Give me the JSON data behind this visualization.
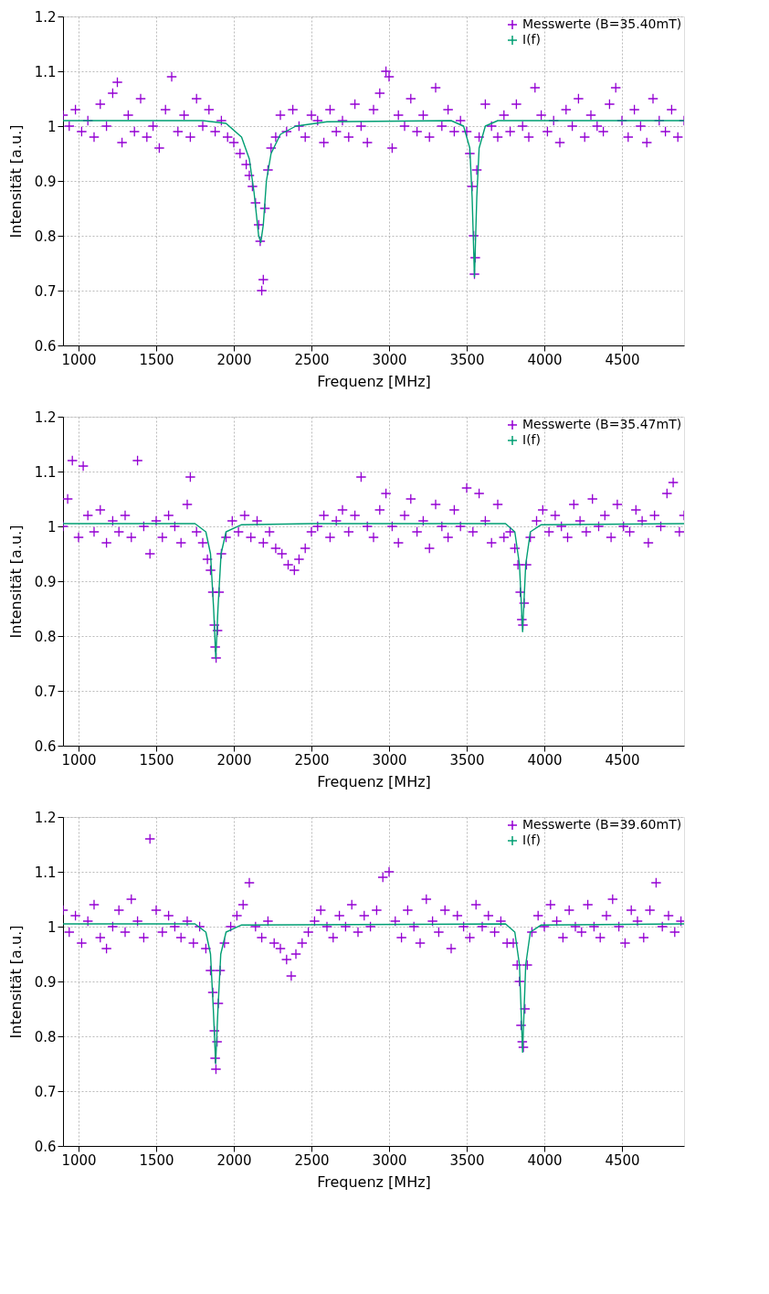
{
  "chart_data": [
    {
      "type": "scatter",
      "xlabel": "Frequenz [MHz]",
      "ylabel": "Intensität [a.u.]",
      "xlim": [
        900,
        4900
      ],
      "ylim": [
        0.6,
        1.2
      ],
      "xticks": [
        1000,
        1500,
        2000,
        2500,
        3000,
        3500,
        4000,
        4500
      ],
      "yticks": [
        0.6,
        0.7,
        0.8,
        0.9,
        1,
        1.1,
        1.2
      ],
      "grid": true,
      "legend": "top right",
      "series": [
        {
          "name": "Messwerte (B=35.40mT)",
          "marker": "cross",
          "color": "#9400d3",
          "x": [
            900,
            940,
            980,
            1020,
            1060,
            1100,
            1140,
            1180,
            1220,
            1250,
            1280,
            1320,
            1360,
            1400,
            1440,
            1480,
            1520,
            1560,
            1600,
            1640,
            1680,
            1720,
            1760,
            1800,
            1840,
            1880,
            1920,
            1960,
            2000,
            2040,
            2080,
            2100,
            2120,
            2140,
            2160,
            2170,
            2180,
            2190,
            2200,
            2220,
            2240,
            2270,
            2300,
            2340,
            2380,
            2420,
            2460,
            2500,
            2540,
            2580,
            2620,
            2660,
            2700,
            2740,
            2780,
            2820,
            2860,
            2900,
            2940,
            2980,
            3000,
            3020,
            3060,
            3100,
            3140,
            3180,
            3220,
            3260,
            3300,
            3340,
            3380,
            3420,
            3460,
            3500,
            3520,
            3535,
            3545,
            3550,
            3555,
            3565,
            3580,
            3620,
            3660,
            3700,
            3740,
            3780,
            3820,
            3860,
            3900,
            3940,
            3980,
            4020,
            4060,
            4100,
            4140,
            4180,
            4220,
            4260,
            4300,
            4340,
            4380,
            4420,
            4460,
            4500,
            4540,
            4580,
            4620,
            4660,
            4700,
            4740,
            4780,
            4820,
            4860,
            4900
          ],
          "values": [
            1.02,
            1.0,
            1.03,
            0.99,
            1.01,
            0.98,
            1.04,
            1.0,
            1.06,
            1.08,
            0.97,
            1.02,
            0.99,
            1.05,
            0.98,
            1.0,
            0.96,
            1.03,
            1.09,
            0.99,
            1.02,
            0.98,
            1.05,
            1.0,
            1.03,
            0.99,
            1.01,
            0.98,
            0.97,
            0.95,
            0.93,
            0.91,
            0.89,
            0.86,
            0.82,
            0.79,
            0.7,
            0.72,
            0.85,
            0.92,
            0.96,
            0.98,
            1.02,
            0.99,
            1.03,
            1.0,
            0.98,
            1.02,
            1.01,
            0.97,
            1.03,
            0.99,
            1.01,
            0.98,
            1.04,
            1.0,
            0.97,
            1.03,
            1.06,
            1.1,
            1.09,
            0.96,
            1.02,
            1.0,
            1.05,
            0.99,
            1.02,
            0.98,
            1.07,
            1.0,
            1.03,
            0.99,
            1.01,
            0.99,
            0.95,
            0.89,
            0.8,
            0.73,
            0.76,
            0.92,
            0.98,
            1.04,
            1.0,
            0.98,
            1.02,
            0.99,
            1.04,
            1.0,
            0.98,
            1.07,
            1.02,
            0.99,
            1.01,
            0.97,
            1.03,
            1.0,
            1.05,
            0.98,
            1.02,
            1.0,
            0.99,
            1.04,
            1.07,
            1.01,
            0.98,
            1.03,
            1.0,
            0.97,
            1.05,
            1.01,
            0.99,
            1.03,
            0.98,
            1.01
          ]
        },
        {
          "name": "I(f)",
          "type": "line",
          "color": "#009e73",
          "x": [
            900,
            1800,
            1950,
            2050,
            2100,
            2130,
            2160,
            2174,
            2190,
            2210,
            2240,
            2300,
            2400,
            2600,
            3400,
            3480,
            3520,
            3535,
            3550,
            3565,
            3580,
            3620,
            3700,
            4900
          ],
          "values": [
            1.01,
            1.01,
            1.005,
            0.98,
            0.94,
            0.88,
            0.8,
            0.788,
            0.82,
            0.9,
            0.95,
            0.985,
            1.0,
            1.008,
            1.01,
            1.0,
            0.96,
            0.87,
            0.725,
            0.87,
            0.96,
            1.0,
            1.01,
            1.01
          ]
        }
      ]
    },
    {
      "type": "scatter",
      "xlabel": "Frequenz [MHz]",
      "ylabel": "Intensität [a.u.]",
      "xlim": [
        900,
        4900
      ],
      "ylim": [
        0.6,
        1.2
      ],
      "xticks": [
        1000,
        1500,
        2000,
        2500,
        3000,
        3500,
        4000,
        4500
      ],
      "yticks": [
        0.6,
        0.7,
        0.8,
        0.9,
        1,
        1.1,
        1.2
      ],
      "grid": true,
      "legend": "top right",
      "series": [
        {
          "name": "Messwerte (B=35.47mT)",
          "marker": "cross",
          "color": "#9400d3",
          "x": [
            900,
            930,
            960,
            1000,
            1030,
            1060,
            1100,
            1140,
            1180,
            1220,
            1260,
            1300,
            1340,
            1380,
            1420,
            1460,
            1500,
            1540,
            1580,
            1620,
            1660,
            1700,
            1720,
            1760,
            1800,
            1830,
            1850,
            1865,
            1875,
            1880,
            1886,
            1895,
            1905,
            1920,
            1950,
            1990,
            2030,
            2070,
            2110,
            2150,
            2190,
            2230,
            2270,
            2310,
            2350,
            2390,
            2420,
            2460,
            2500,
            2540,
            2580,
            2620,
            2660,
            2700,
            2740,
            2780,
            2820,
            2860,
            2900,
            2940,
            2980,
            3020,
            3060,
            3100,
            3140,
            3180,
            3220,
            3260,
            3300,
            3340,
            3380,
            3420,
            3460,
            3500,
            3540,
            3580,
            3620,
            3660,
            3700,
            3740,
            3780,
            3810,
            3830,
            3845,
            3855,
            3862,
            3870,
            3885,
            3910,
            3950,
            3990,
            4030,
            4070,
            4110,
            4150,
            4190,
            4230,
            4270,
            4310,
            4350,
            4390,
            4430,
            4470,
            4510,
            4550,
            4590,
            4630,
            4670,
            4710,
            4750,
            4790,
            4830,
            4870,
            4900
          ],
          "values": [
            1.0,
            1.05,
            1.12,
            0.98,
            1.11,
            1.02,
            0.99,
            1.03,
            0.97,
            1.01,
            0.99,
            1.02,
            0.98,
            1.12,
            1.0,
            0.95,
            1.01,
            0.98,
            1.02,
            1.0,
            0.97,
            1.04,
            1.09,
            0.99,
            0.97,
            0.94,
            0.92,
            0.88,
            0.82,
            0.78,
            0.76,
            0.81,
            0.88,
            0.95,
            0.98,
            1.01,
            0.99,
            1.02,
            0.98,
            1.01,
            0.97,
            0.99,
            0.96,
            0.95,
            0.93,
            0.92,
            0.94,
            0.96,
            0.99,
            1.0,
            1.02,
            0.98,
            1.01,
            1.03,
            0.99,
            1.02,
            1.09,
            1.0,
            0.98,
            1.03,
            1.06,
            1.0,
            0.97,
            1.02,
            1.05,
            0.99,
            1.01,
            0.96,
            1.04,
            1.0,
            0.98,
            1.03,
            1.0,
            1.07,
            0.99,
            1.06,
            1.01,
            0.97,
            1.04,
            0.98,
            0.99,
            0.96,
            0.93,
            0.88,
            0.83,
            0.82,
            0.86,
            0.93,
            0.98,
            1.01,
            1.03,
            0.99,
            1.02,
            1.0,
            0.98,
            1.04,
            1.01,
            0.99,
            1.05,
            1.0,
            1.02,
            0.98,
            1.04,
            1.0,
            0.99,
            1.03,
            1.01,
            0.97,
            1.02,
            1.0,
            1.06,
            1.08,
            0.99,
            1.02
          ]
        },
        {
          "name": "I(f)",
          "type": "line",
          "color": "#009e73",
          "x": [
            900,
            1750,
            1820,
            1850,
            1870,
            1884,
            1898,
            1918,
            1950,
            2050,
            2500,
            3750,
            3810,
            3840,
            3860,
            3880,
            3910,
            3980,
            4900
          ],
          "values": [
            1.005,
            1.005,
            0.99,
            0.95,
            0.85,
            0.759,
            0.85,
            0.95,
            0.99,
            1.003,
            1.005,
            1.005,
            0.99,
            0.93,
            0.808,
            0.93,
            0.99,
            1.003,
            1.005
          ]
        }
      ]
    },
    {
      "type": "scatter",
      "xlabel": "Frequenz [MHz]",
      "ylabel": "Intensität [a.u.]",
      "xlim": [
        900,
        4900
      ],
      "ylim": [
        0.6,
        1.2
      ],
      "xticks": [
        1000,
        1500,
        2000,
        2500,
        3000,
        3500,
        4000,
        4500
      ],
      "yticks": [
        0.6,
        0.7,
        0.8,
        0.9,
        1,
        1.1,
        1.2
      ],
      "grid": true,
      "legend": "top right",
      "series": [
        {
          "name": "Messwerte (B=39.60mT)",
          "marker": "cross",
          "color": "#9400d3",
          "x": [
            900,
            940,
            980,
            1020,
            1060,
            1100,
            1140,
            1180,
            1220,
            1260,
            1300,
            1340,
            1380,
            1420,
            1460,
            1500,
            1540,
            1580,
            1620,
            1660,
            1700,
            1740,
            1780,
            1820,
            1850,
            1865,
            1875,
            1880,
            1885,
            1892,
            1900,
            1912,
            1940,
            1980,
            2020,
            2060,
            2100,
            2140,
            2180,
            2220,
            2260,
            2300,
            2340,
            2370,
            2400,
            2440,
            2480,
            2520,
            2560,
            2600,
            2640,
            2680,
            2720,
            2760,
            2800,
            2840,
            2880,
            2920,
            2960,
            3000,
            3040,
            3080,
            3120,
            3160,
            3200,
            3240,
            3280,
            3320,
            3360,
            3400,
            3440,
            3480,
            3520,
            3560,
            3600,
            3640,
            3680,
            3720,
            3760,
            3800,
            3825,
            3840,
            3850,
            3858,
            3865,
            3875,
            3890,
            3920,
            3960,
            4000,
            4040,
            4080,
            4120,
            4160,
            4200,
            4240,
            4280,
            4320,
            4360,
            4400,
            4440,
            4480,
            4520,
            4560,
            4600,
            4640,
            4680,
            4720,
            4760,
            4800,
            4840,
            4880
          ],
          "values": [
            1.03,
            0.99,
            1.02,
            0.97,
            1.01,
            1.04,
            0.98,
            0.96,
            1.0,
            1.03,
            0.99,
            1.05,
            1.01,
            0.98,
            1.16,
            1.03,
            0.99,
            1.02,
            1.0,
            0.98,
            1.01,
            0.97,
            1.0,
            0.96,
            0.92,
            0.88,
            0.81,
            0.76,
            0.74,
            0.79,
            0.86,
            0.92,
            0.97,
            1.0,
            1.02,
            1.04,
            1.08,
            1.0,
            0.98,
            1.01,
            0.97,
            0.96,
            0.94,
            0.91,
            0.95,
            0.97,
            0.99,
            1.01,
            1.03,
            1.0,
            0.98,
            1.02,
            1.0,
            1.04,
            0.99,
            1.02,
            1.0,
            1.03,
            1.09,
            1.1,
            1.01,
            0.98,
            1.03,
            1.0,
            0.97,
            1.05,
            1.01,
            0.99,
            1.03,
            0.96,
            1.02,
            1.0,
            0.98,
            1.04,
            1.0,
            1.02,
            0.99,
            1.01,
            0.97,
            0.97,
            0.93,
            0.9,
            0.82,
            0.79,
            0.78,
            0.85,
            0.93,
            0.99,
            1.02,
            1.0,
            1.04,
            1.01,
            0.98,
            1.03,
            1.0,
            0.99,
            1.04,
            1.0,
            0.98,
            1.02,
            1.05,
            1.0,
            0.97,
            1.03,
            1.01,
            0.98,
            1.03,
            1.08,
            1.0,
            1.02,
            0.99,
            1.01
          ]
        },
        {
          "name": "I(f)",
          "type": "line",
          "color": "#009e73",
          "x": [
            900,
            1750,
            1820,
            1850,
            1868,
            1883,
            1898,
            1916,
            1950,
            2050,
            3750,
            3810,
            3840,
            3860,
            3880,
            3910,
            3980,
            4900
          ],
          "values": [
            1.005,
            1.005,
            0.99,
            0.95,
            0.85,
            0.75,
            0.85,
            0.95,
            0.99,
            1.003,
            1.005,
            0.99,
            0.93,
            0.771,
            0.93,
            0.99,
            1.003,
            1.005
          ]
        }
      ]
    }
  ]
}
